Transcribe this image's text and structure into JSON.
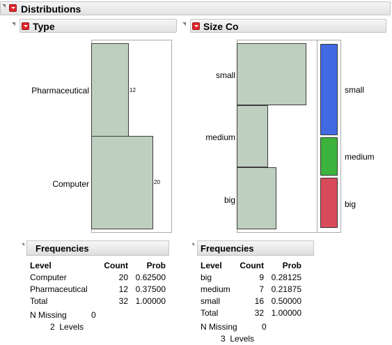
{
  "title": "Distributions",
  "type_panel": {
    "title": "Type",
    "categories": [
      "Pharmaceutical",
      "Computer"
    ],
    "counts": [
      "12",
      "20"
    ],
    "frequencies": {
      "title": "Frequencies",
      "headers": [
        "Level",
        "Count",
        "Prob"
      ],
      "rows": [
        {
          "level": "Computer",
          "count": "20",
          "prob": "0.62500"
        },
        {
          "level": "Pharmaceutical",
          "count": "12",
          "prob": "0.37500"
        },
        {
          "level": "Total",
          "count": "32",
          "prob": "1.00000"
        }
      ],
      "missing_label": "N Missing",
      "missing_value": "0",
      "levels_text": "2  Levels"
    }
  },
  "size_panel": {
    "title": "Size Co",
    "categories": [
      "small",
      "medium",
      "big"
    ],
    "mosaic_labels": [
      "small",
      "medium",
      "big"
    ],
    "frequencies": {
      "title": "Frequencies",
      "headers": [
        "Level",
        "Count",
        "Prob"
      ],
      "rows": [
        {
          "level": "big",
          "count": "9",
          "prob": "0.28125"
        },
        {
          "level": "medium",
          "count": "7",
          "prob": "0.21875"
        },
        {
          "level": "small",
          "count": "16",
          "prob": "0.50000"
        },
        {
          "level": "Total",
          "count": "32",
          "prob": "1.00000"
        }
      ],
      "missing_label": "N Missing",
      "missing_value": "0",
      "levels_text": "3  Levels"
    }
  },
  "chart_data": [
    {
      "type": "bar",
      "orientation": "horizontal",
      "categories": [
        "Pharmaceutical",
        "Computer"
      ],
      "values": [
        12,
        20
      ]
    },
    {
      "type": "bar",
      "orientation": "horizontal",
      "categories": [
        "small",
        "medium",
        "big"
      ],
      "values": [
        16,
        7,
        9
      ],
      "mosaic_colors": [
        "#4169e1",
        "#3cb33c",
        "#d94b5a"
      ]
    }
  ]
}
